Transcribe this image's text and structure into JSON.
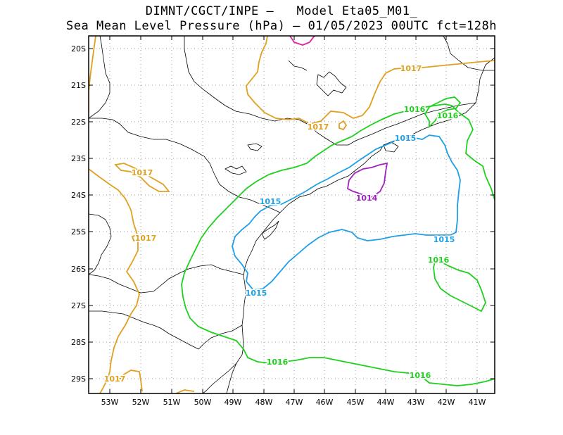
{
  "title_line1": "DIMNT/CGCT/INPE –   Model Eta05_M01_",
  "title_line2": "Sea Mean Level Pressure (hPa) – 01/05/2023 00UTC fct=128h",
  "lat_ticks": [
    "20S",
    "21S",
    "22S",
    "23S",
    "24S",
    "25S",
    "26S",
    "27S",
    "28S",
    "29S"
  ],
  "lon_ticks": [
    "53W",
    "52W",
    "51W",
    "50W",
    "49W",
    "48W",
    "47W",
    "46W",
    "45W",
    "44W",
    "43W",
    "42W",
    "41W"
  ],
  "colors": {
    "c1014": "#a020c0",
    "c1015": "#1e9fe6",
    "c1016": "#1fd01f",
    "c1017": "#e0a020",
    "c1013": "#e0209e",
    "map": "#000000",
    "grid": "#9a9a9a"
  },
  "contour_labels": [
    {
      "text": "1017",
      "level": "1017"
    },
    {
      "text": "1017",
      "level": "1017"
    },
    {
      "text": "1017",
      "level": "1017"
    },
    {
      "text": "1017",
      "level": "1017"
    },
    {
      "text": "1017",
      "level": "1017"
    },
    {
      "text": "1016",
      "level": "1016"
    },
    {
      "text": "1016",
      "level": "1016"
    },
    {
      "text": "1016",
      "level": "1016"
    },
    {
      "text": "1016",
      "level": "1016"
    },
    {
      "text": "1016",
      "level": "1016"
    },
    {
      "text": "1015",
      "level": "1015"
    },
    {
      "text": "1015",
      "level": "1015"
    },
    {
      "text": "1015",
      "level": "1015"
    },
    {
      "text": "1015",
      "level": "1015"
    },
    {
      "text": "1014",
      "level": "1014"
    }
  ]
}
